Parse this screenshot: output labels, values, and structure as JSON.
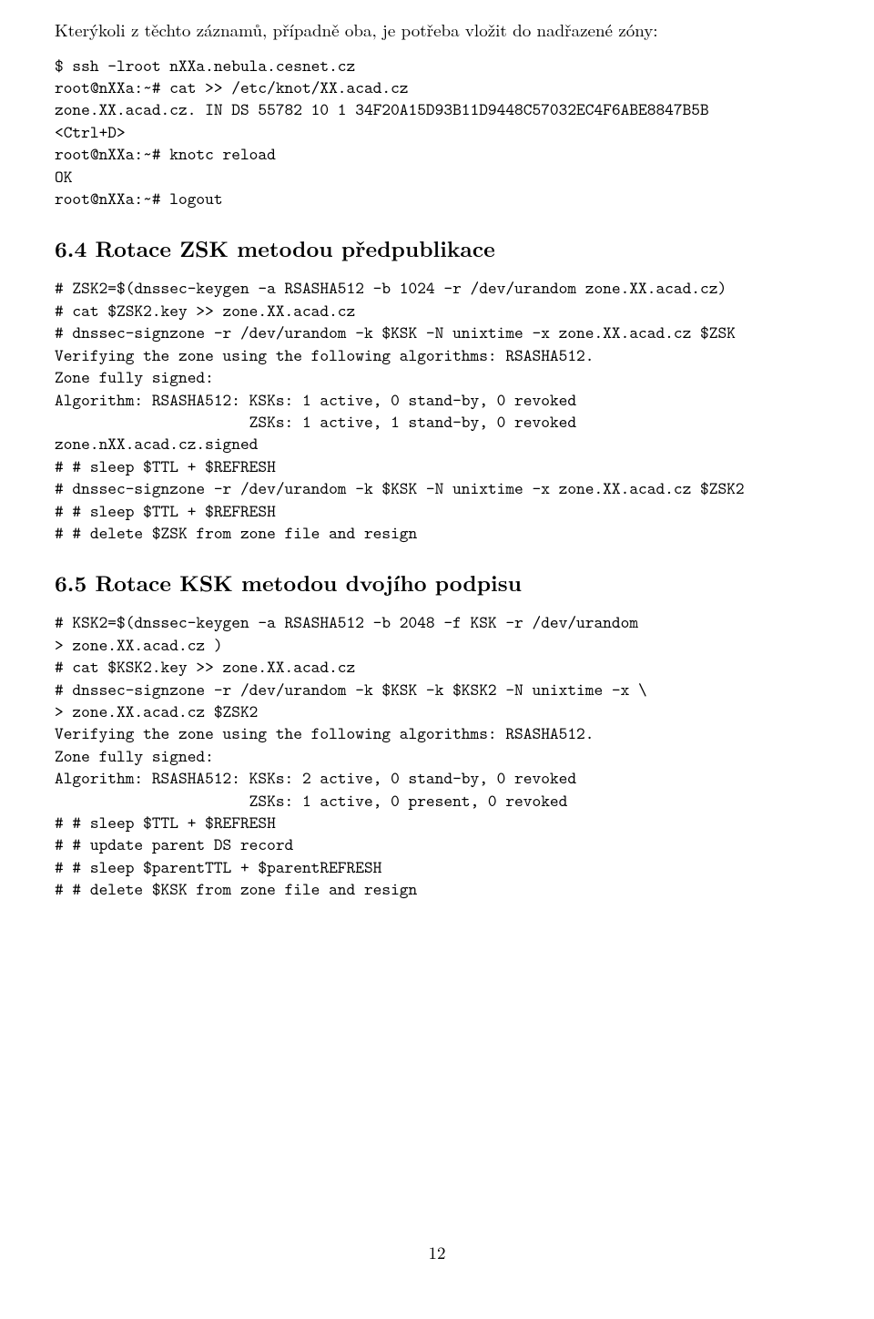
{
  "intro": "Kterýkoli z těchto záznamů, případně oba, je potřeba vložit do nadřazené zóny:",
  "code1": "$ ssh -lroot nXXa.nebula.cesnet.cz\nroot@nXXa:~# cat >> /etc/knot/XX.acad.cz\nzone.XX.acad.cz. IN DS 55782 10 1 34F20A15D93B11D9448C57032EC4F6ABE8847B5B\n<Ctrl+D>\nroot@nXXa:~# knotc reload\nOK\nroot@nXXa:~# logout",
  "heading64": "6.4   Rotace ZSK metodou předpublikace",
  "code2": "# ZSK2=$(dnssec-keygen -a RSASHA512 -b 1024 -r /dev/urandom zone.XX.acad.cz)\n# cat $ZSK2.key >> zone.XX.acad.cz\n# dnssec-signzone -r /dev/urandom -k $KSK -N unixtime -x zone.XX.acad.cz $ZSK\nVerifying the zone using the following algorithms: RSASHA512.\nZone fully signed:\nAlgorithm: RSASHA512: KSKs: 1 active, 0 stand-by, 0 revoked\n                      ZSKs: 1 active, 1 stand-by, 0 revoked\nzone.nXX.acad.cz.signed\n# # sleep $TTL + $REFRESH\n# dnssec-signzone -r /dev/urandom -k $KSK -N unixtime -x zone.XX.acad.cz $ZSK2\n# # sleep $TTL + $REFRESH\n# # delete $ZSK from zone file and resign",
  "heading65": "6.5   Rotace KSK metodou dvojího podpisu",
  "code3": "# KSK2=$(dnssec-keygen -a RSASHA512 -b 2048 -f KSK -r /dev/urandom\n> zone.XX.acad.cz )\n# cat $KSK2.key >> zone.XX.acad.cz\n# dnssec-signzone -r /dev/urandom -k $KSK -k $KSK2 -N unixtime -x \\\n> zone.XX.acad.cz $ZSK2\nVerifying the zone using the following algorithms: RSASHA512.\nZone fully signed:\nAlgorithm: RSASHA512: KSKs: 2 active, 0 stand-by, 0 revoked\n                      ZSKs: 1 active, 0 present, 0 revoked\n# # sleep $TTL + $REFRESH\n# # update parent DS record\n# # sleep $parentTTL + $parentREFRESH\n# # delete $KSK from zone file and resign",
  "pageNumber": "12"
}
